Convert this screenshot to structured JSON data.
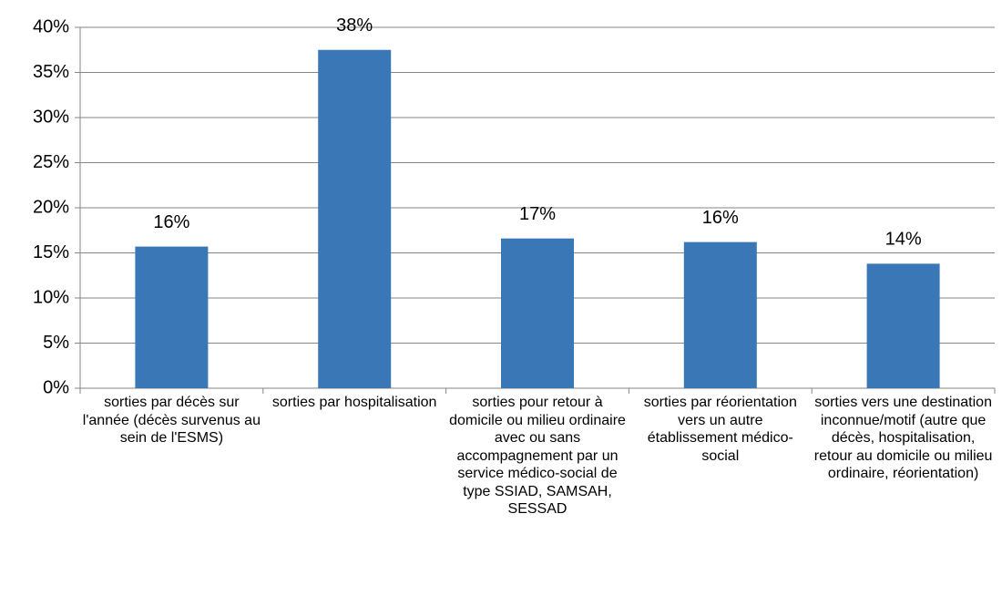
{
  "chart_data": {
    "type": "bar",
    "categories": [
      "sorties par décès sur l'année (décès survenus au sein de l'ESMS)",
      "sorties par hospitalisation",
      "sorties pour retour à domicile ou milieu ordinaire avec ou sans accompagnement par un service médico-social de type SSIAD, SAMSAH, SESSAD",
      "sorties par réorientation vers un autre établissement médico-social",
      "sorties vers une destination inconnue/motif (autre que décès, hospitalisation, retour au domicile ou milieu ordinaire, réorientation)"
    ],
    "values": [
      15.7,
      37.5,
      16.6,
      16.2,
      13.8
    ],
    "value_labels": [
      "16%",
      "38%",
      "17%",
      "16%",
      "14%"
    ],
    "color": "#3a77b6",
    "ylim": [
      0,
      40
    ],
    "yticks": [
      {
        "value": 0,
        "label": "0%"
      },
      {
        "value": 5,
        "label": "5%"
      },
      {
        "value": 10,
        "label": "10%"
      },
      {
        "value": 15,
        "label": "15%"
      },
      {
        "value": 20,
        "label": "20%"
      },
      {
        "value": 25,
        "label": "25%"
      },
      {
        "value": 30,
        "label": "30%"
      },
      {
        "value": 35,
        "label": "35%"
      },
      {
        "value": 40,
        "label": "40%"
      }
    ],
    "grid": true
  }
}
